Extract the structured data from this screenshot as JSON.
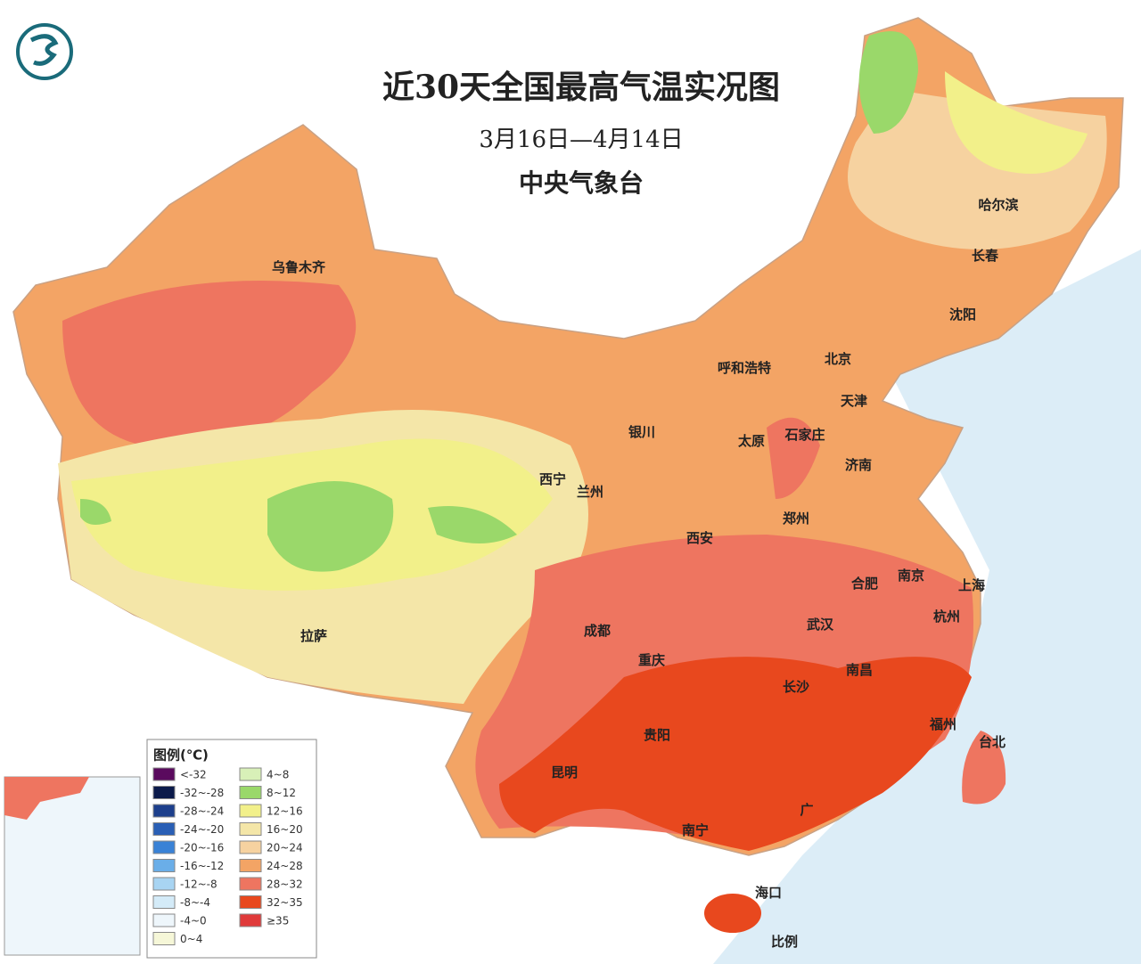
{
  "header": {
    "title": "近30天全国最高气温实况图",
    "date_range": "3月16日—4月14日",
    "agency": "中央气象台"
  },
  "cities": [
    "乌鲁木齐",
    "哈尔滨",
    "长春",
    "沈阳",
    "北京",
    "天津",
    "呼和浩特",
    "银川",
    "太原",
    "石家庄",
    "济南",
    "西宁",
    "兰州",
    "郑州",
    "西安",
    "合肥",
    "南京",
    "上海",
    "杭州",
    "成都",
    "武汉",
    "重庆",
    "长沙",
    "南昌",
    "拉萨",
    "贵阳",
    "福州",
    "台北",
    "昆明",
    "南宁",
    "广",
    "海口"
  ],
  "legend": {
    "title": "图例(℃)",
    "entries": [
      {
        "label": "<-32",
        "color": "#5a0a5e"
      },
      {
        "label": "-32~-28",
        "color": "#0b1a4a"
      },
      {
        "label": "-28~-24",
        "color": "#1d3f8c"
      },
      {
        "label": "-24~-20",
        "color": "#2a5fb5"
      },
      {
        "label": "-20~-16",
        "color": "#3a82d6"
      },
      {
        "label": "-16~-12",
        "color": "#6aaee8"
      },
      {
        "label": "-12~-8",
        "color": "#a8d4f2"
      },
      {
        "label": "-8~-4",
        "color": "#d4ebf8"
      },
      {
        "label": "-4~0",
        "color": "#eef6fb"
      },
      {
        "label": "0~4",
        "color": "#f6f7d8"
      },
      {
        "label": "4~8",
        "color": "#d8f0b8"
      },
      {
        "label": "8~12",
        "color": "#9ad86a"
      },
      {
        "label": "12~16",
        "color": "#f2f08a"
      },
      {
        "label": "16~20",
        "color": "#f4e6a8"
      },
      {
        "label": "20~24",
        "color": "#f6d2a0"
      },
      {
        "label": "24~28",
        "color": "#f3a465"
      },
      {
        "label": "28~32",
        "color": "#ee7560"
      },
      {
        "label": "32~35",
        "color": "#e8481e"
      },
      {
        "label": "≥35",
        "color": "#e03a3a"
      }
    ]
  },
  "scale_label": "比例"
}
